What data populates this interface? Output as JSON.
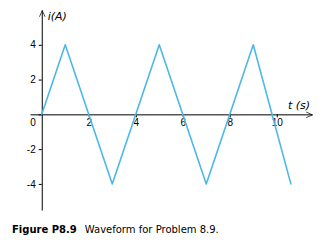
{
  "chart_data": {
    "type": "line",
    "title": "Figure P8.9",
    "subtitle": "Waveform for Problem 8.9.",
    "xlabel": "t (s)",
    "ylabel": "i(A)",
    "x": [
      0,
      1,
      3,
      5,
      7,
      9,
      10.6
    ],
    "series": [
      {
        "color": "#4db8e8",
        "values": [
          0,
          4,
          -4,
          4,
          -4,
          4,
          -4
        ]
      }
    ],
    "xlim": [
      -0.5,
      11.5
    ],
    "ylim": [
      -5.5,
      6.0
    ],
    "xticks": [
      2,
      4,
      6,
      8,
      10
    ],
    "yticks": [
      -4,
      -2,
      0,
      2,
      4
    ],
    "grid": false
  }
}
